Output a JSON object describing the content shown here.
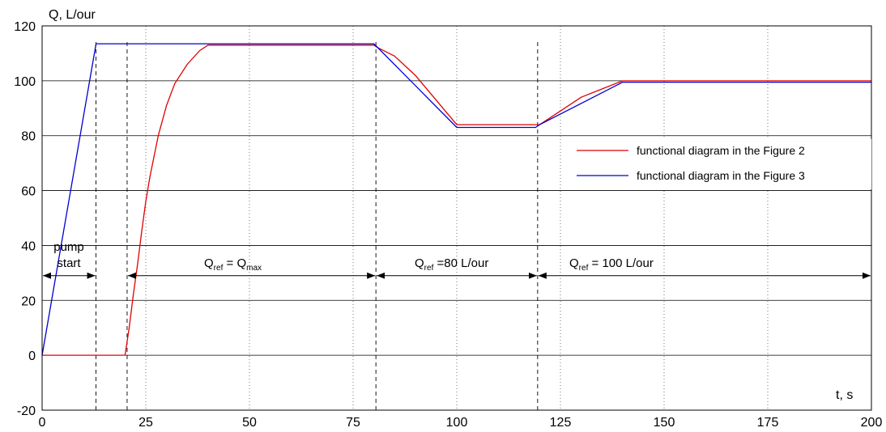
{
  "chart_data": {
    "type": "line",
    "ylabel": "Q, L/our",
    "xlabel": "t, s",
    "xlim": [
      0,
      200
    ],
    "ylim": [
      -20,
      120
    ],
    "x_ticks": [
      0,
      25,
      50,
      75,
      100,
      125,
      150,
      175,
      200
    ],
    "y_ticks": [
      -20,
      0,
      20,
      40,
      60,
      80,
      100,
      120
    ],
    "grid": {
      "horizontal": "solid",
      "vertical": "dotted"
    },
    "legend_position": "right",
    "series": [
      {
        "name": "functional diagram in the Figure 2",
        "color": "#e00000",
        "x": [
          0,
          20,
          21,
          22,
          23,
          24,
          25,
          26,
          28,
          30,
          32,
          35,
          38,
          40,
          41,
          60,
          80,
          81,
          85,
          90,
          95,
          100,
          110,
          119,
          120,
          125,
          130,
          135,
          140,
          200
        ],
        "y": [
          0,
          0,
          10,
          22,
          33,
          45,
          56,
          65,
          80,
          91,
          99,
          106,
          111,
          113,
          113,
          113,
          113,
          112,
          109,
          102,
          93,
          84,
          84,
          84,
          84,
          89,
          94,
          97,
          100,
          100
        ]
      },
      {
        "name": "functional diagram in the Figure 3",
        "color": "#0000d0",
        "x": [
          0,
          13,
          80,
          81,
          100,
          119,
          120,
          140,
          200
        ],
        "y": [
          0,
          113.5,
          113.5,
          112,
          83,
          83,
          84,
          99.5,
          99.5
        ]
      }
    ],
    "markers": [
      13,
      20.5,
      80.5,
      119.5
    ],
    "annotations": {
      "pump_start_line1": "pump",
      "pump_start_line2": "start",
      "seg2_q": "Q",
      "seg2_ref": "ref",
      "seg2_eq": " = Q",
      "seg2_max": "max",
      "seg3_q": "Q",
      "seg3_ref": "ref",
      "seg3_text": " =80 L/our",
      "seg4_q": "Q",
      "seg4_ref": "ref",
      "seg4_text": " = 100 L/our"
    },
    "arrows": [
      {
        "from": 0,
        "to": 13,
        "y": 29
      },
      {
        "from": 20.5,
        "to": 80.5,
        "y": 29
      },
      {
        "from": 80.5,
        "to": 119.5,
        "y": 29
      },
      {
        "from": 119.5,
        "to": 200,
        "y": 29
      }
    ]
  }
}
